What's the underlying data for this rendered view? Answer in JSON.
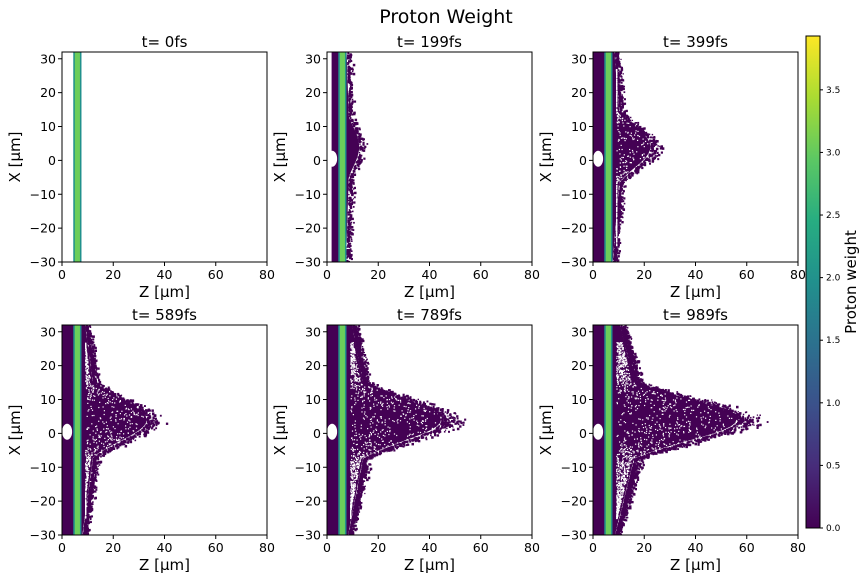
{
  "figure": {
    "suptitle": "Proton Weight"
  },
  "chart_data": {
    "type": "heatmap",
    "title": "Proton Weight",
    "panels": [
      {
        "title": "t= 0fs",
        "xlabel": "Z [µm]",
        "ylabel": "X [µm]",
        "xlim": [
          0,
          80
        ],
        "ylim": [
          -30,
          32
        ],
        "xticks": [
          0,
          20,
          40,
          60,
          80
        ],
        "yticks": [
          -30,
          -20,
          -10,
          0,
          10,
          20,
          30
        ],
        "expansion_front_z_um": 6,
        "foil_z_um": [
          5,
          7
        ]
      },
      {
        "title": "t= 199fs",
        "xlabel": "Z [µm]",
        "ylabel": "X [µm]",
        "xlim": [
          0,
          80
        ],
        "ylim": [
          -30,
          32
        ],
        "xticks": [
          0,
          20,
          40,
          60,
          80
        ],
        "yticks": [
          -30,
          -20,
          -10,
          0,
          10,
          20,
          30
        ],
        "expansion_front_z_um": 14,
        "foil_z_um": [
          5,
          7
        ]
      },
      {
        "title": "t= 399fs",
        "xlabel": "Z [µm]",
        "ylabel": "X [µm]",
        "xlim": [
          0,
          80
        ],
        "ylim": [
          -30,
          32
        ],
        "xticks": [
          0,
          20,
          40,
          60,
          80
        ],
        "yticks": [
          -30,
          -20,
          -10,
          0,
          10,
          20,
          30
        ],
        "expansion_front_z_um": 26,
        "foil_z_um": [
          5,
          7
        ]
      },
      {
        "title": "t= 589fs",
        "xlabel": "Z [µm]",
        "ylabel": "X [µm]",
        "xlim": [
          0,
          80
        ],
        "ylim": [
          -30,
          32
        ],
        "xticks": [
          0,
          20,
          40,
          60,
          80
        ],
        "yticks": [
          -30,
          -20,
          -10,
          0,
          10,
          20,
          30
        ],
        "expansion_front_z_um": 39,
        "foil_z_um": [
          5,
          7
        ]
      },
      {
        "title": "t= 789fs",
        "xlabel": "Z [µm]",
        "ylabel": "X [µm]",
        "xlim": [
          0,
          80
        ],
        "ylim": [
          -30,
          32
        ],
        "xticks": [
          0,
          20,
          40,
          60,
          80
        ],
        "yticks": [
          -30,
          -20,
          -10,
          0,
          10,
          20,
          30
        ],
        "expansion_front_z_um": 53,
        "foil_z_um": [
          5,
          7
        ]
      },
      {
        "title": "t= 989fs",
        "xlabel": "Z [µm]",
        "ylabel": "X [µm]",
        "xlim": [
          0,
          80
        ],
        "ylim": [
          -30,
          32
        ],
        "xticks": [
          0,
          20,
          40,
          60,
          80
        ],
        "yticks": [
          -30,
          -20,
          -10,
          0,
          10,
          20,
          30
        ],
        "expansion_front_z_um": 67,
        "foil_z_um": [
          5,
          7
        ]
      }
    ],
    "colorbar": {
      "label": "Proton weight",
      "range": [
        0,
        3.93
      ],
      "ticks": [
        0.0,
        0.5,
        1.0,
        1.5,
        2.0,
        2.5,
        3.0,
        3.5
      ],
      "tick_labels": [
        "0.0",
        "0.5",
        "1.0",
        "1.5",
        "2.0",
        "2.5",
        "3.0",
        "3.5"
      ],
      "colormap": "viridis"
    },
    "colors": {
      "background_particle": "#440154",
      "foil_core": "#6ccd5a",
      "foil_edge": "#21918c"
    }
  }
}
